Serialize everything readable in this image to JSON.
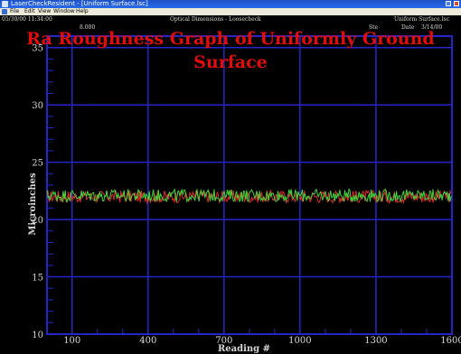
{
  "window": {
    "title": "LaserCheckResident - [Uniform Surface.lsc]",
    "menu": [
      "File",
      "Edit",
      "View",
      "Window",
      "Help"
    ]
  },
  "header": {
    "datetime": "05/30/00 11:34:00",
    "mode": "Optical Dimensions - Loosecheck",
    "file_label": "Uniform Surface.lsc",
    "partial_value": "8.000",
    "partial_label": "Ste",
    "partial_right": "Date",
    "partial_right_value": "3/14/00"
  },
  "overlay_title": "Ra Roughness Graph of Uniformly Ground Surface",
  "colors": {
    "grid": "#2525c8",
    "series_red": "#e02a2a",
    "series_green": "#3dd83d",
    "title_overlay": "#e10c0c"
  },
  "chart_data": {
    "type": "line",
    "title": "Ra Roughness Graph of Uniformly Ground Surface",
    "xlabel": "Reading #",
    "ylabel": "Microinches",
    "xlim": [
      1,
      1600
    ],
    "ylim": [
      10,
      36
    ],
    "x_ticks": [
      100,
      400,
      700,
      1000,
      1300,
      1600
    ],
    "y_ticks": [
      10,
      15,
      20,
      25,
      30,
      35
    ],
    "grid": true,
    "series": [
      {
        "color": "#e02a2a",
        "mean": 22.0,
        "amplitude": 0.55
      },
      {
        "color": "#3dd83d",
        "mean": 22.1,
        "amplitude": 0.55
      }
    ]
  }
}
